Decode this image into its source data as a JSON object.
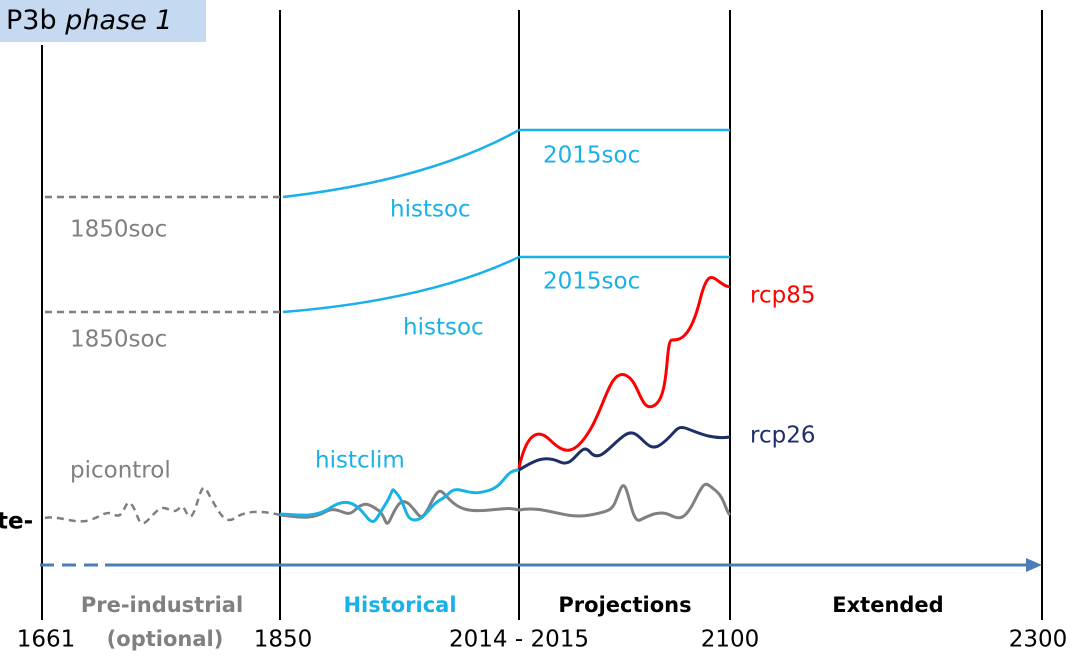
{
  "title": {
    "prefix": "P3b",
    "phase": "phase 1"
  },
  "scenarios": {
    "soc_pre_1": "1850soc",
    "soc_pre_2": "1850soc",
    "hist_1": "histsoc",
    "hist_2": "histsoc",
    "future_1": "2015soc",
    "future_2": "2015soc",
    "rcp85": "rcp85",
    "rcp26": "rcp26",
    "picontrol": "picontrol",
    "histclim": "histclim",
    "climate": "te-"
  },
  "periods": [
    "Pre-industrial",
    "(optional)",
    "Historical",
    "Projections",
    "Extended"
  ],
  "years": [
    "1661",
    "1850",
    "2014 - 2015",
    "2100",
    "2300"
  ]
}
